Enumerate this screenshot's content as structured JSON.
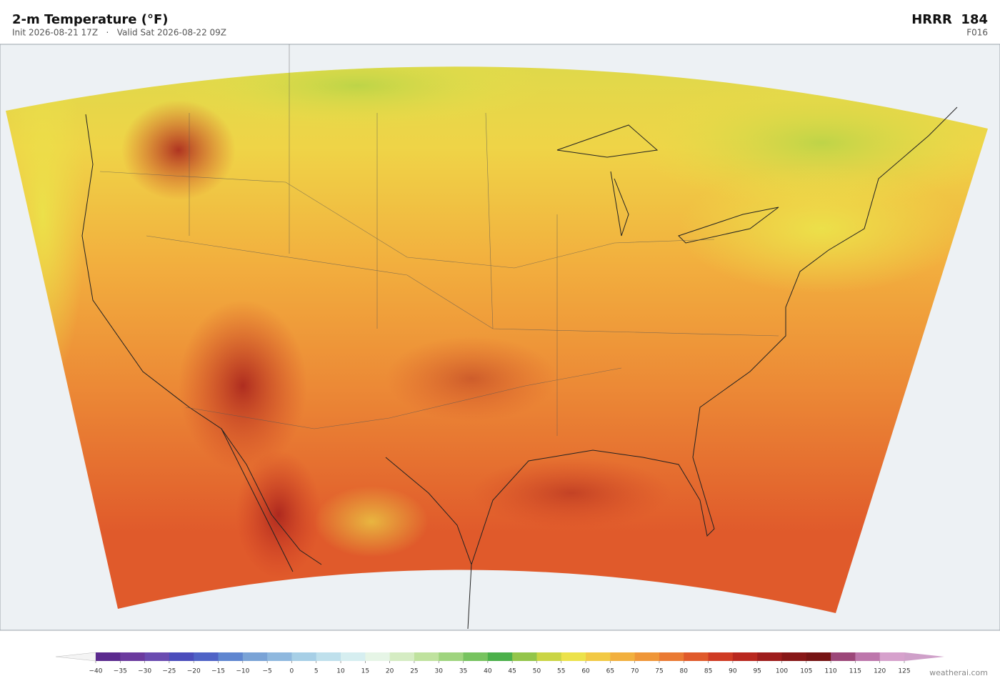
{
  "header": {
    "title": "2-m Temperature  (°F)",
    "subtitle": "Init 2026-08-21 17Z   ·   Valid Sat 2026-08-22 09Z",
    "model": "HRRR  184",
    "forecast_hour": "F016"
  },
  "colorbar": {
    "ticks": [
      {
        "value": -40,
        "label": "−40"
      },
      {
        "value": -35,
        "label": "−35"
      },
      {
        "value": -30,
        "label": "−30"
      },
      {
        "value": -25,
        "label": "−25"
      },
      {
        "value": -20,
        "label": "−20"
      },
      {
        "value": -15,
        "label": "−15"
      },
      {
        "value": -10,
        "label": "−10"
      },
      {
        "value": -5,
        "label": "−5"
      },
      0,
      5,
      10,
      15,
      20,
      25,
      30,
      35,
      40,
      45,
      50,
      55,
      60,
      65,
      70,
      75,
      80,
      85,
      90,
      95,
      100,
      105,
      110,
      115,
      120,
      125
    ],
    "colors": [
      "#5b2a8e",
      "#6b3a9e",
      "#6a4bb0",
      "#4b4dbb",
      "#4f63c6",
      "#5f86d0",
      "#7aa3d6",
      "#8fb8de",
      "#a7cfe6",
      "#bfe0ec",
      "#d6eef0",
      "#e6f5e6",
      "#d5ecc3",
      "#bfe29e",
      "#9fd47e",
      "#77c35f",
      "#4bb04a",
      "#93c54a",
      "#cad544",
      "#ece24a",
      "#f2c944",
      "#f2b03e",
      "#ef9638",
      "#ea7a33",
      "#e05a2b",
      "#cf3b24",
      "#b9281f",
      "#9e1d1c",
      "#871717",
      "#761414",
      "#9c4779",
      "#bd76ab",
      "#d6a1cc"
    ],
    "under_color": "#f4f4f4",
    "over_color": "#cfa0c9"
  },
  "footer": {
    "credit": "weatherai.com"
  }
}
